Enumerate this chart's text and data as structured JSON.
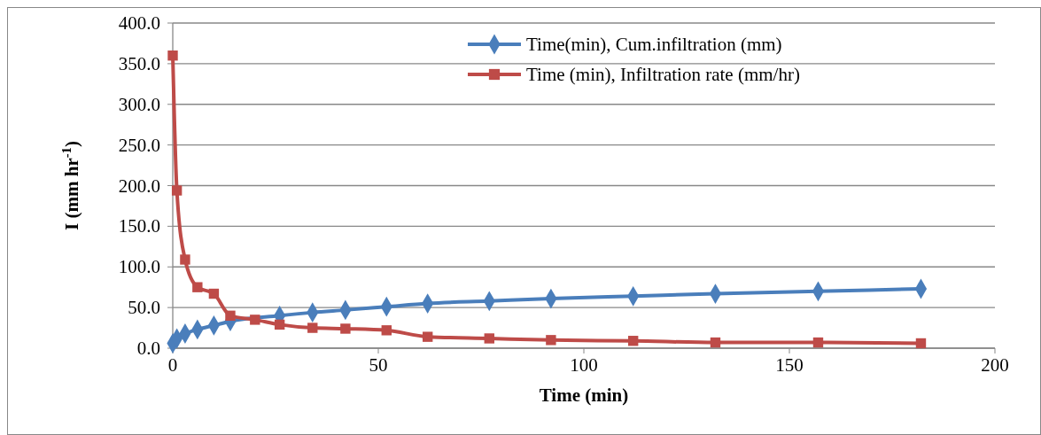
{
  "chart_data": {
    "type": "line",
    "xlabel": "Time (min)",
    "ylabel": "I (mm hr$^{-1}$)",
    "x": [
      0,
      1,
      3,
      6,
      10,
      14,
      20,
      26,
      34,
      42,
      52,
      62,
      77,
      92,
      112,
      132,
      157,
      182
    ],
    "series": [
      {
        "name": "Time(min), Cum.infiltration (mm)",
        "color": "#4a7ebb",
        "marker": "diamond",
        "values": [
          6,
          12,
          18,
          23,
          28,
          33,
          null,
          40,
          44,
          47,
          51,
          55,
          58,
          61,
          64,
          67,
          70,
          73
        ]
      },
      {
        "name": "Time (min), Infiltration rate (mm/hr)",
        "color": "#be4b48",
        "marker": "square",
        "values": [
          360,
          194,
          109,
          75,
          67,
          40,
          35,
          29,
          25,
          24,
          22,
          14,
          12,
          10,
          9,
          7,
          7,
          6
        ]
      }
    ],
    "xlim": [
      0,
      200
    ],
    "xticks": [
      0,
      50,
      100,
      150,
      200
    ],
    "ylim": [
      0,
      400
    ],
    "yticks": [
      {
        "value": 0,
        "label": "0.0"
      },
      {
        "value": 50,
        "label": "50.0"
      },
      {
        "value": 100,
        "label": "100.0"
      },
      {
        "value": 150,
        "label": "150.0"
      },
      {
        "value": 200,
        "label": "200.0"
      },
      {
        "value": 250,
        "label": "250.0"
      },
      {
        "value": 300,
        "label": "300.0"
      },
      {
        "value": 350,
        "label": "350.0"
      },
      {
        "value": 400,
        "label": "400.0"
      }
    ],
    "grid": "y",
    "legend": "top right",
    "line_style": "solid"
  }
}
